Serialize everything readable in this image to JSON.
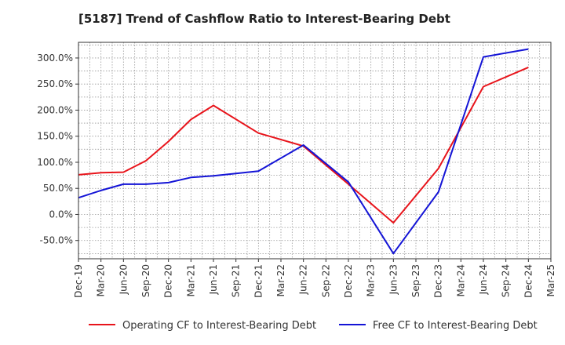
{
  "chart_data": {
    "type": "line",
    "title": "[5187]  Trend of Cashflow Ratio to Interest-Bearing Debt",
    "xlabel": "",
    "ylabel": "",
    "x": [
      "Dec-19",
      "Mar-20",
      "Jun-20",
      "Sep-20",
      "Dec-20",
      "Mar-21",
      "Jun-21",
      "Sep-21",
      "Dec-21",
      "Mar-22",
      "Jun-22",
      "Sep-22",
      "Dec-22",
      "Mar-23",
      "Jun-23",
      "Sep-23",
      "Dec-23",
      "Mar-24",
      "Jun-24",
      "Sep-24",
      "Dec-24",
      "Mar-25"
    ],
    "ylim": [
      -85,
      330
    ],
    "yticks": [
      -50,
      0,
      50,
      100,
      150,
      200,
      250,
      300
    ],
    "ytick_labels": [
      "-50.0%",
      "0.0%",
      "50.0%",
      "100.0%",
      "150.0%",
      "200.0%",
      "250.0%",
      "300.0%"
    ],
    "grid": true,
    "legend_position": "bottom",
    "series": [
      {
        "name": "Operating CF to Interest-Bearing Debt",
        "color": "#e8141b",
        "points": [
          {
            "x": "Dec-19",
            "y": 76
          },
          {
            "x": "Mar-20",
            "y": 80
          },
          {
            "x": "Jun-20",
            "y": 81
          },
          {
            "x": "Sep-20",
            "y": 103
          },
          {
            "x": "Dec-20",
            "y": 140
          },
          {
            "x": "Mar-21",
            "y": 182
          },
          {
            "x": "Jun-21",
            "y": 209
          },
          {
            "x": "Dec-21",
            "y": 156
          },
          {
            "x": "Jun-22",
            "y": 131
          },
          {
            "x": "Dec-22",
            "y": 58
          },
          {
            "x": "Jun-23",
            "y": -16
          },
          {
            "x": "Dec-23",
            "y": 88
          },
          {
            "x": "Jun-24",
            "y": 245
          },
          {
            "x": "Dec-24",
            "y": 282
          }
        ]
      },
      {
        "name": "Free CF to Interest-Bearing Debt",
        "color": "#1414d6",
        "points": [
          {
            "x": "Dec-19",
            "y": 32
          },
          {
            "x": "Mar-20",
            "y": 46
          },
          {
            "x": "Jun-20",
            "y": 58
          },
          {
            "x": "Sep-20",
            "y": 58
          },
          {
            "x": "Dec-20",
            "y": 61
          },
          {
            "x": "Mar-21",
            "y": 71
          },
          {
            "x": "Jun-21",
            "y": 74
          },
          {
            "x": "Dec-21",
            "y": 83
          },
          {
            "x": "Jun-22",
            "y": 133
          },
          {
            "x": "Dec-22",
            "y": 62
          },
          {
            "x": "Jun-23",
            "y": -75
          },
          {
            "x": "Dec-23",
            "y": 43
          },
          {
            "x": "Jun-24",
            "y": 302
          },
          {
            "x": "Dec-24",
            "y": 317
          }
        ]
      }
    ]
  }
}
